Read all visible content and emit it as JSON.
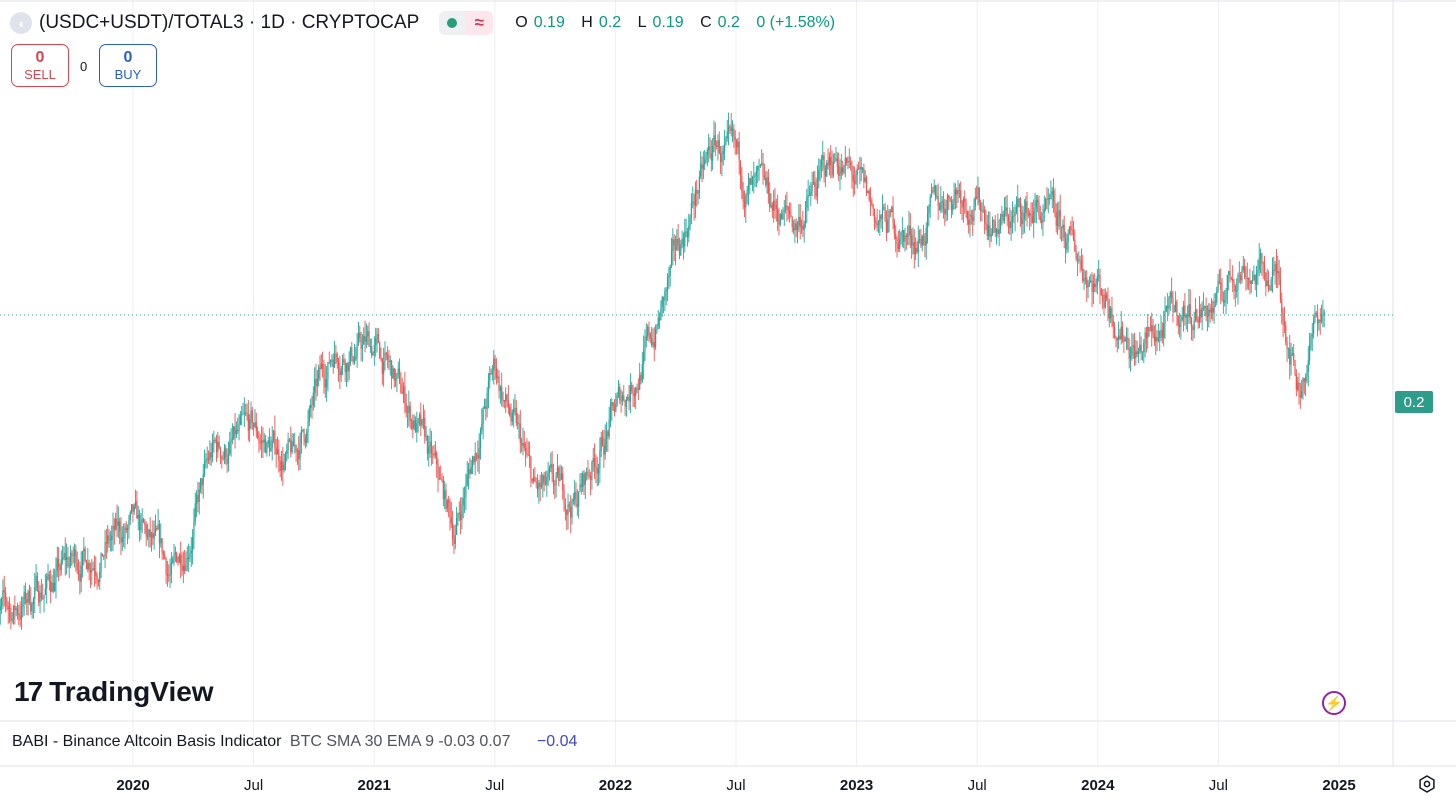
{
  "header": {
    "symbol_icon": "symbol-logo-icon",
    "title": "(USDC+USDT)/TOTAL3 · 1D · CRYPTOCAP",
    "status_icon": "market-status-dot-icon",
    "delay_icon": "approx-delay-icon",
    "ohlc": {
      "o_label": "O",
      "o_value": "0.19",
      "h_label": "H",
      "h_value": "0.2",
      "l_label": "L",
      "l_value": "0.19",
      "c_label": "C",
      "c_value": "0.2",
      "change": "0 (+1.58%)"
    }
  },
  "trade": {
    "sell_count": "0",
    "sell_label": "SELL",
    "spread": "0",
    "buy_count": "0",
    "buy_label": "BUY"
  },
  "branding": {
    "logo_text": "TradingView",
    "logo_mark": "17"
  },
  "price_label": "0.2",
  "indicator": {
    "name": "BABI - Binance Altcoin Basis Indicator",
    "params": "BTC SMA 30 EMA 9 -0.03 0.07",
    "value": "−0.04"
  },
  "colors": {
    "up": "#26a69a",
    "down": "#ef5350",
    "grid": "#eceff3",
    "price_line": "#2d9d8a",
    "indicator_value": "#3e47c9"
  },
  "chart_data": {
    "type": "line",
    "style": "candlestick",
    "title": "(USDC+USDT)/TOTAL3 · 1D · CRYPTOCAP",
    "x_ticks": [
      "2020",
      "Jul",
      "2021",
      "Jul",
      "2022",
      "Jul",
      "2023",
      "Jul",
      "2024",
      "Jul",
      "2025"
    ],
    "x_range": [
      "2019-06",
      "2025-03"
    ],
    "y_range": [
      0.1,
      0.27
    ],
    "y_axis_visible_labels": [
      "0.2"
    ],
    "last_value": 0.2,
    "grid": true,
    "x": [
      "2019-07",
      "2019-09",
      "2019-11",
      "2020-01",
      "2020-03",
      "2020-05",
      "2020-07",
      "2020-09",
      "2020-11",
      "2021-01",
      "2021-03",
      "2021-05",
      "2021-07",
      "2021-09",
      "2021-11",
      "2022-01",
      "2022-03",
      "2022-05",
      "2022-06",
      "2022-08",
      "2022-10",
      "2022-12",
      "2023-02",
      "2023-04",
      "2023-06",
      "2023-08",
      "2023-10",
      "2024-01",
      "2024-03",
      "2024-05",
      "2024-07",
      "2024-08",
      "2024-10",
      "2024-11",
      "2024-12"
    ],
    "series": [
      {
        "values": [
          0.115,
          0.125,
          0.133,
          0.138,
          0.125,
          0.16,
          0.165,
          0.158,
          0.191,
          0.191,
          0.17,
          0.138,
          0.185,
          0.148,
          0.147,
          0.172,
          0.195,
          0.235,
          0.248,
          0.233,
          0.226,
          0.246,
          0.227,
          0.222,
          0.238,
          0.226,
          0.23,
          0.21,
          0.19,
          0.2,
          0.203,
          0.215,
          0.21,
          0.18,
          0.2
        ]
      }
    ]
  }
}
